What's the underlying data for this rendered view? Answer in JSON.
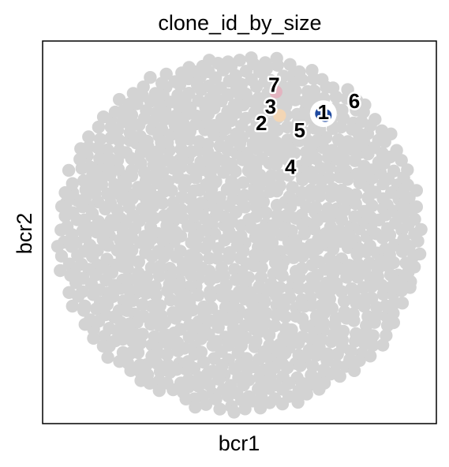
{
  "chart_data": {
    "type": "scatter",
    "title": "clone_id_by_size",
    "xlabel": "bcr1",
    "ylabel": "bcr2",
    "xticks": [],
    "yticks": [],
    "grid": false,
    "legend": "none",
    "background_point_color": "#d3d3d3",
    "background_layout": "circular-cloud",
    "background_point_count": 1100,
    "xlim": [
      -1.08,
      1.08
    ],
    "ylim": [
      -1.05,
      1.05
    ],
    "highlight_points": [
      {
        "x": 0.45,
        "y": 0.66,
        "color": "#1f4aa0"
      },
      {
        "x": 0.47,
        "y": 0.65,
        "color": "#1f4aa0"
      },
      {
        "x": 0.2,
        "y": 0.78,
        "color": "#e3b4c0"
      },
      {
        "x": 0.22,
        "y": 0.65,
        "color": "#f3d6b5"
      }
    ],
    "clone_labels": [
      {
        "text": "1",
        "x": 0.46,
        "y": 0.66
      },
      {
        "text": "2",
        "x": 0.12,
        "y": 0.6
      },
      {
        "text": "3",
        "x": 0.17,
        "y": 0.69
      },
      {
        "text": "4",
        "x": 0.28,
        "y": 0.36
      },
      {
        "text": "5",
        "x": 0.33,
        "y": 0.56
      },
      {
        "text": "6",
        "x": 0.63,
        "y": 0.72
      },
      {
        "text": "7",
        "x": 0.19,
        "y": 0.81
      }
    ]
  }
}
